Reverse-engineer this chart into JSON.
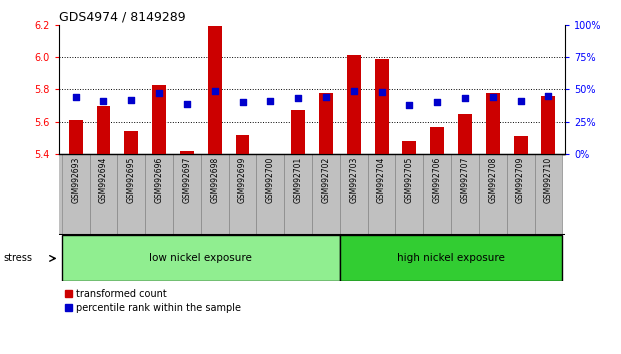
{
  "title": "GDS4974 / 8149289",
  "samples": [
    "GSM992693",
    "GSM992694",
    "GSM992695",
    "GSM992696",
    "GSM992697",
    "GSM992698",
    "GSM992699",
    "GSM992700",
    "GSM992701",
    "GSM992702",
    "GSM992703",
    "GSM992704",
    "GSM992705",
    "GSM992706",
    "GSM992707",
    "GSM992708",
    "GSM992709",
    "GSM992710"
  ],
  "transformed_count": [
    5.61,
    5.7,
    5.54,
    5.83,
    5.42,
    6.19,
    5.52,
    5.4,
    5.67,
    5.78,
    6.01,
    5.99,
    5.48,
    5.57,
    5.65,
    5.78,
    5.51,
    5.76
  ],
  "percentile_rank": [
    44,
    41,
    42,
    47,
    39,
    49,
    40,
    41,
    43,
    44,
    49,
    48,
    38,
    40,
    43,
    44,
    41,
    45
  ],
  "ylim_left": [
    5.4,
    6.2
  ],
  "ylim_right": [
    0,
    100
  ],
  "yticks_left": [
    5.4,
    5.6,
    5.8,
    6.0,
    6.2
  ],
  "yticks_right": [
    0,
    25,
    50,
    75,
    100
  ],
  "ytick_labels_right": [
    "0%",
    "25%",
    "50%",
    "75%",
    "100%"
  ],
  "bar_color": "#cc0000",
  "dot_color": "#0000cc",
  "bar_bottom": 5.4,
  "group1_label": "low nickel exposure",
  "group2_label": "high nickel exposure",
  "group1_count": 10,
  "stress_label": "stress",
  "legend1": "transformed count",
  "legend2": "percentile rank within the sample",
  "label_area_bg": "#c0c0c0",
  "group1_bg": "#90ee90",
  "group2_bg": "#32cd32",
  "grid_dotted_at": [
    5.6,
    5.8,
    6.0
  ],
  "title_fontsize": 9,
  "tick_fontsize": 7,
  "legend_fontsize": 7,
  "bar_width": 0.5
}
